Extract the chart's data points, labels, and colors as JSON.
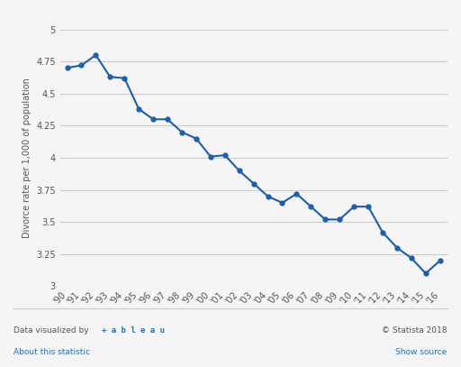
{
  "years": [
    "'90",
    "'91",
    "'92",
    "'93",
    "'94",
    "'95",
    "'96",
    "'97",
    "'98",
    "'99",
    "'00",
    "'01",
    "'02",
    "'03",
    "'04",
    "'05",
    "'06",
    "'07",
    "'08",
    "'09",
    "'10",
    "'11",
    "'12",
    "'13",
    "'14",
    "'15",
    "'16"
  ],
  "values": [
    4.7,
    4.72,
    4.8,
    4.63,
    4.62,
    4.38,
    4.3,
    4.3,
    4.2,
    4.15,
    4.01,
    4.02,
    3.9,
    3.8,
    3.7,
    3.65,
    3.72,
    3.62,
    3.52,
    3.52,
    3.62,
    3.62,
    3.42,
    3.3,
    3.22,
    3.1,
    3.2
  ],
  "line_color": "#1f5fa6",
  "marker_color": "#1f5fa6",
  "background_color": "#f5f5f5",
  "plot_bg_color": "#f5f5f5",
  "grid_color": "#cccccc",
  "ylabel": "Divorce rate per 1,000 of population",
  "ylim": [
    3.0,
    5.0
  ],
  "yticks": [
    3.0,
    3.25,
    3.5,
    3.75,
    4.0,
    4.25,
    4.5,
    4.75,
    5.0
  ],
  "footer_left": "Data visualized by  +tableau",
  "footer_right": "© Statista 2018",
  "footer_link_left": "About this statistic",
  "footer_link_right": "Show source"
}
